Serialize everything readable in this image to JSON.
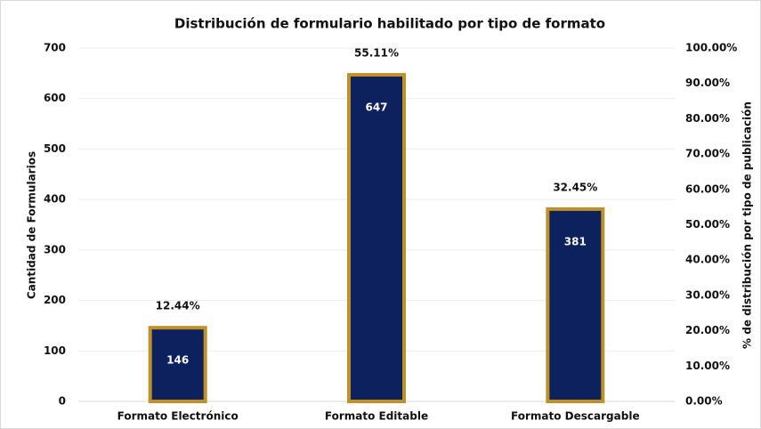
{
  "chart_data": {
    "type": "bar",
    "title": "Distribución de formulario habilitado por tipo de formato",
    "y_label": "Cantidad de Formularios",
    "y2_label": "% de distribución por tipo de publicación",
    "categories": [
      "Formato Electrónico",
      "Formato Editable",
      "Formato Descargable"
    ],
    "values": [
      146,
      647,
      381
    ],
    "percent_labels": [
      "12.44%",
      "55.11%",
      "32.45%"
    ],
    "color": "#0c215e",
    "edge_color": "#bf9127",
    "ylim": [
      0,
      700
    ],
    "yticks": [
      0,
      100,
      200,
      300,
      400,
      500,
      600,
      700
    ],
    "y2lim": [
      0,
      100
    ],
    "y2ticks": [
      {
        "value": 0,
        "label": "0.00%"
      },
      {
        "value": 10,
        "label": "10.00%"
      },
      {
        "value": 20,
        "label": "20.00%"
      },
      {
        "value": 30,
        "label": "30.00%"
      },
      {
        "value": 40,
        "label": "40.00%"
      },
      {
        "value": 50,
        "label": "50.00%"
      },
      {
        "value": 60,
        "label": "60.00%"
      },
      {
        "value": 70,
        "label": "70.00%"
      },
      {
        "value": 80,
        "label": "80.00%"
      },
      {
        "value": 90,
        "label": "90.00%"
      },
      {
        "value": 100,
        "label": "100.00%"
      }
    ],
    "grid": true
  }
}
